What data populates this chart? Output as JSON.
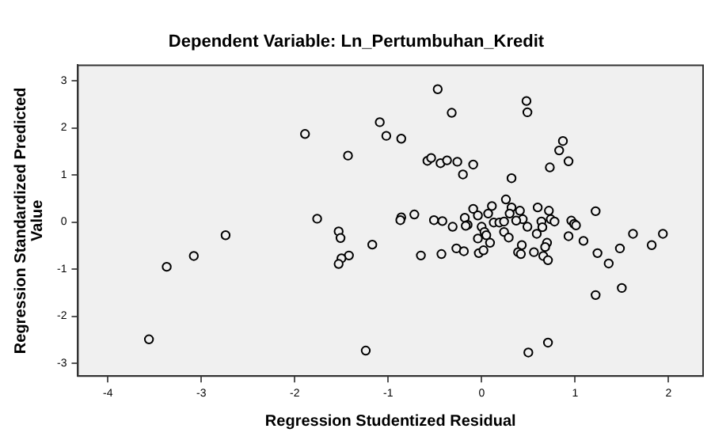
{
  "chart_data": {
    "type": "scatter",
    "title": "Dependent Variable: Ln_Pertumbuhan_Kredit",
    "xlabel": "Regression Studentized Residual",
    "ylabel": "Regression Standardized Predicted Value",
    "xlim": [
      -4.32,
      2.37
    ],
    "ylim": [
      -3.27,
      3.33
    ],
    "xticks": [
      -4,
      -3,
      -2,
      -1,
      0,
      1,
      2
    ],
    "yticks": [
      -3,
      -2,
      -1,
      0,
      1,
      2,
      3
    ],
    "grid": false,
    "legend": false,
    "marker": "circle",
    "series": [
      {
        "color": "#000000",
        "x": [
          -3.56,
          -3.37,
          -3.08,
          -2.74,
          -1.89,
          -1.43,
          -1.76,
          -1.53,
          -1.51,
          -1.42,
          -1.5,
          -1.53,
          -1.17,
          -1.24,
          -1.09,
          -0.47,
          -0.32,
          -1.02,
          -0.86,
          0.48,
          0.49,
          0.87,
          0.83,
          0.93,
          0.73,
          -0.58,
          -0.54,
          -0.44,
          -0.37,
          -0.26,
          -0.09,
          -0.2,
          0.32,
          1.22,
          -0.86,
          -0.87,
          -0.72,
          -0.51,
          -0.42,
          -0.31,
          -0.18,
          -0.15,
          -0.17,
          -0.09,
          -0.04,
          0,
          0.11,
          0.07,
          0.03,
          0.05,
          -0.04,
          0.09,
          0.13,
          0.19,
          0.26,
          0.32,
          0.3,
          0.24,
          0.24,
          0.29,
          0.41,
          0.44,
          0.49,
          0.37,
          0.6,
          0.72,
          0.64,
          0.74,
          0.78,
          0.59,
          0.65,
          0.7,
          0.68,
          0.43,
          0.39,
          0.42,
          0.56,
          0.66,
          0.71,
          0.96,
          0.99,
          1.01,
          0.93,
          1.09,
          1.24,
          1.36,
          1.48,
          1.62,
          1.82,
          1.94,
          1.22,
          1.5,
          0.5,
          0.71,
          -0.65,
          -0.43,
          -0.27,
          -0.19,
          -0.03,
          0.02
        ],
        "values": [
          -2.49,
          -0.95,
          -0.72,
          -0.28,
          1.87,
          1.41,
          0.07,
          -0.2,
          -0.34,
          -0.71,
          -0.77,
          -0.89,
          -0.48,
          -2.73,
          2.12,
          2.82,
          2.32,
          1.83,
          1.77,
          2.57,
          2.33,
          1.72,
          1.52,
          1.29,
          1.16,
          1.3,
          1.36,
          1.25,
          1.31,
          1.28,
          1.22,
          1.01,
          0.93,
          0.23,
          0.1,
          0.04,
          0.16,
          0.04,
          0.02,
          -0.1,
          0.09,
          -0.06,
          -0.08,
          0.28,
          0.14,
          -0.1,
          0.34,
          0.18,
          -0.21,
          -0.28,
          -0.35,
          -0.44,
          -0.01,
          -0.01,
          0.48,
          0.31,
          0.18,
          0.01,
          -0.21,
          -0.33,
          0.24,
          0.06,
          -0.1,
          0.03,
          0.31,
          0.24,
          0.01,
          0.06,
          0.01,
          -0.25,
          -0.11,
          -0.44,
          -0.53,
          -0.49,
          -0.64,
          -0.68,
          -0.64,
          -0.72,
          -0.81,
          0.03,
          -0.04,
          -0.07,
          -0.3,
          -0.4,
          -0.66,
          -0.88,
          -0.56,
          -0.25,
          -0.49,
          -0.25,
          -1.55,
          -1.4,
          -2.77,
          -2.56,
          -0.71,
          -0.68,
          -0.56,
          -0.62,
          -0.66,
          -0.6
        ]
      }
    ]
  }
}
